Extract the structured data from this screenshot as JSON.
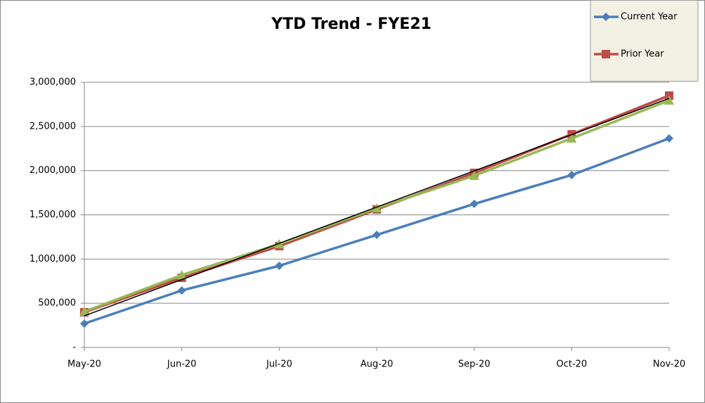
{
  "chart_data": {
    "type": "line",
    "title": "YTD Trend - FYE21",
    "categories": [
      "May-20",
      "Jun-20",
      "Jul-20",
      "Aug-20",
      "Sep-20",
      "Oct-20",
      "Nov-20"
    ],
    "series": [
      {
        "name": "Current Year",
        "color": "#4a7ebb",
        "marker": "diamond",
        "values": [
          270000,
          645000,
          924000,
          1274000,
          1624000,
          1951000,
          2365000
        ]
      },
      {
        "name": "Prior Year",
        "color": "#be4b48",
        "marker": "square",
        "values": [
          398000,
          788000,
          1146000,
          1561000,
          1975000,
          2412000,
          2850000
        ]
      },
      {
        "color": "#98b954",
        "marker": "triangle",
        "values": [
          406000,
          820000,
          1170000,
          1576000,
          1943000,
          2365000,
          2795000
        ]
      },
      {
        "color": "#000000",
        "values": [
          358000,
          768000,
          1178000,
          1588000,
          1998000,
          2408000,
          2818000
        ]
      }
    ],
    "ylim": [
      0,
      3000000
    ],
    "yticks": [
      {
        "value": 0,
        "label": "-"
      },
      {
        "value": 500000,
        "label": "500,000"
      },
      {
        "value": 1000000,
        "label": "1,000,000"
      },
      {
        "value": 1500000,
        "label": "1,500,000"
      },
      {
        "value": 2000000,
        "label": "2,000,000"
      },
      {
        "value": 2500000,
        "label": "2,500,000"
      },
      {
        "value": 3000000,
        "label": "3,000,000"
      }
    ],
    "grid": true,
    "legend": "top-right"
  }
}
